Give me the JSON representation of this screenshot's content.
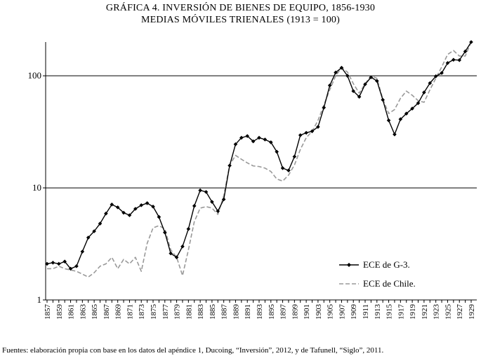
{
  "chart_title": "GRÁFICA 4. INVERSIÓN DE BIENES DE EQUIPO, 1856-1930",
  "chart_subtitle": "MEDIAS MÓVILES TRIENALES (1913 = 100)",
  "footer": "Fuentes: elaboración propia con base en los datos del apéndice 1, Ducoing, “Inversión”, 2012, y de Tafunell, “Siglo”, 2011.",
  "colors": {
    "series1": "#000000",
    "series2": "#999999",
    "gridline": "#000000"
  },
  "chart_data": {
    "type": "line",
    "title": "GRÁFICA 4. INVERSIÓN DE BIENES DE EQUIPO, 1856-1930",
    "subtitle": "MEDIAS MÓVILES TRIENALES (1913 = 100)",
    "x": [
      1857,
      1858,
      1859,
      1860,
      1861,
      1862,
      1863,
      1864,
      1865,
      1866,
      1867,
      1868,
      1869,
      1870,
      1871,
      1872,
      1873,
      1874,
      1875,
      1876,
      1877,
      1878,
      1879,
      1880,
      1881,
      1882,
      1883,
      1884,
      1885,
      1886,
      1887,
      1888,
      1889,
      1890,
      1891,
      1892,
      1893,
      1894,
      1895,
      1896,
      1897,
      1898,
      1899,
      1900,
      1901,
      1902,
      1903,
      1904,
      1905,
      1906,
      1907,
      1908,
      1909,
      1910,
      1911,
      1912,
      1913,
      1914,
      1915,
      1916,
      1917,
      1918,
      1919,
      1920,
      1921,
      1922,
      1923,
      1924,
      1925,
      1926,
      1927,
      1928,
      1929
    ],
    "x_tick_labels": [
      "1857",
      "1859",
      "1861",
      "1863",
      "1865",
      "1867",
      "1869",
      "1871",
      "1873",
      "1875",
      "1877",
      "1879",
      "1881",
      "1883",
      "1885",
      "1887",
      "1889",
      "1891",
      "1893",
      "1895",
      "1897",
      "1899",
      "1901",
      "1903",
      "1905",
      "1907",
      "1909",
      "1911",
      "1913",
      "1915",
      "1917",
      "1919",
      "1921",
      "1923",
      "1925",
      "1927",
      "1929"
    ],
    "y_scale": "log",
    "ylim": [
      1,
      200
    ],
    "y_ticks": [
      1,
      10,
      100
    ],
    "y_tick_labels": [
      "1",
      "10",
      "100"
    ],
    "grid": "horizontal at 10 and 100",
    "legend_position": "bottom-right",
    "series": [
      {
        "name": "ECE de G-3.",
        "style": "solid-diamond",
        "values": [
          2.1,
          2.15,
          2.1,
          2.2,
          1.9,
          2.0,
          2.7,
          3.6,
          4.1,
          4.8,
          5.9,
          7.1,
          6.7,
          6.0,
          5.7,
          6.5,
          7.0,
          7.3,
          6.8,
          5.5,
          4.0,
          2.6,
          2.4,
          3.0,
          4.3,
          6.9,
          9.5,
          9.2,
          7.5,
          6.2,
          7.9,
          15.8,
          24.5,
          28.0,
          29.0,
          26.0,
          28.0,
          27.0,
          25.5,
          21.0,
          15.0,
          14.3,
          19.0,
          29.5,
          31.0,
          32.0,
          35.0,
          52.0,
          82.0,
          107.0,
          118.0,
          100.0,
          73.0,
          65.0,
          84.0,
          97.0,
          90.0,
          61.0,
          40.0,
          30.0,
          41.0,
          46.0,
          51.0,
          57.0,
          71.0,
          86.0,
          99.0,
          106.0,
          130.0,
          139.0,
          138.0,
          165.0,
          200.0
        ]
      },
      {
        "name": "ECE de Chile.",
        "style": "dashed",
        "values": [
          1.9,
          1.9,
          2.0,
          1.9,
          1.85,
          1.8,
          1.7,
          1.6,
          1.75,
          2.0,
          2.1,
          2.4,
          1.9,
          2.3,
          2.1,
          2.4,
          1.8,
          3.2,
          4.4,
          4.6,
          4.3,
          2.8,
          2.4,
          1.65,
          2.8,
          5.0,
          6.6,
          6.8,
          6.6,
          5.8,
          8.5,
          16.0,
          19.5,
          18.0,
          16.7,
          15.7,
          15.5,
          15.0,
          14.0,
          12.0,
          11.5,
          13.0,
          16.0,
          22.0,
          28.0,
          32.0,
          40.0,
          55.0,
          75.0,
          100.0,
          118.0,
          108.0,
          85.0,
          70.0,
          85.0,
          100.0,
          95.0,
          62.0,
          46.0,
          50.0,
          63.0,
          73.0,
          67.0,
          60.0,
          58.0,
          75.0,
          95.0,
          120.0,
          155.0,
          168.0,
          150.0,
          150.0,
          200.0
        ]
      }
    ]
  }
}
